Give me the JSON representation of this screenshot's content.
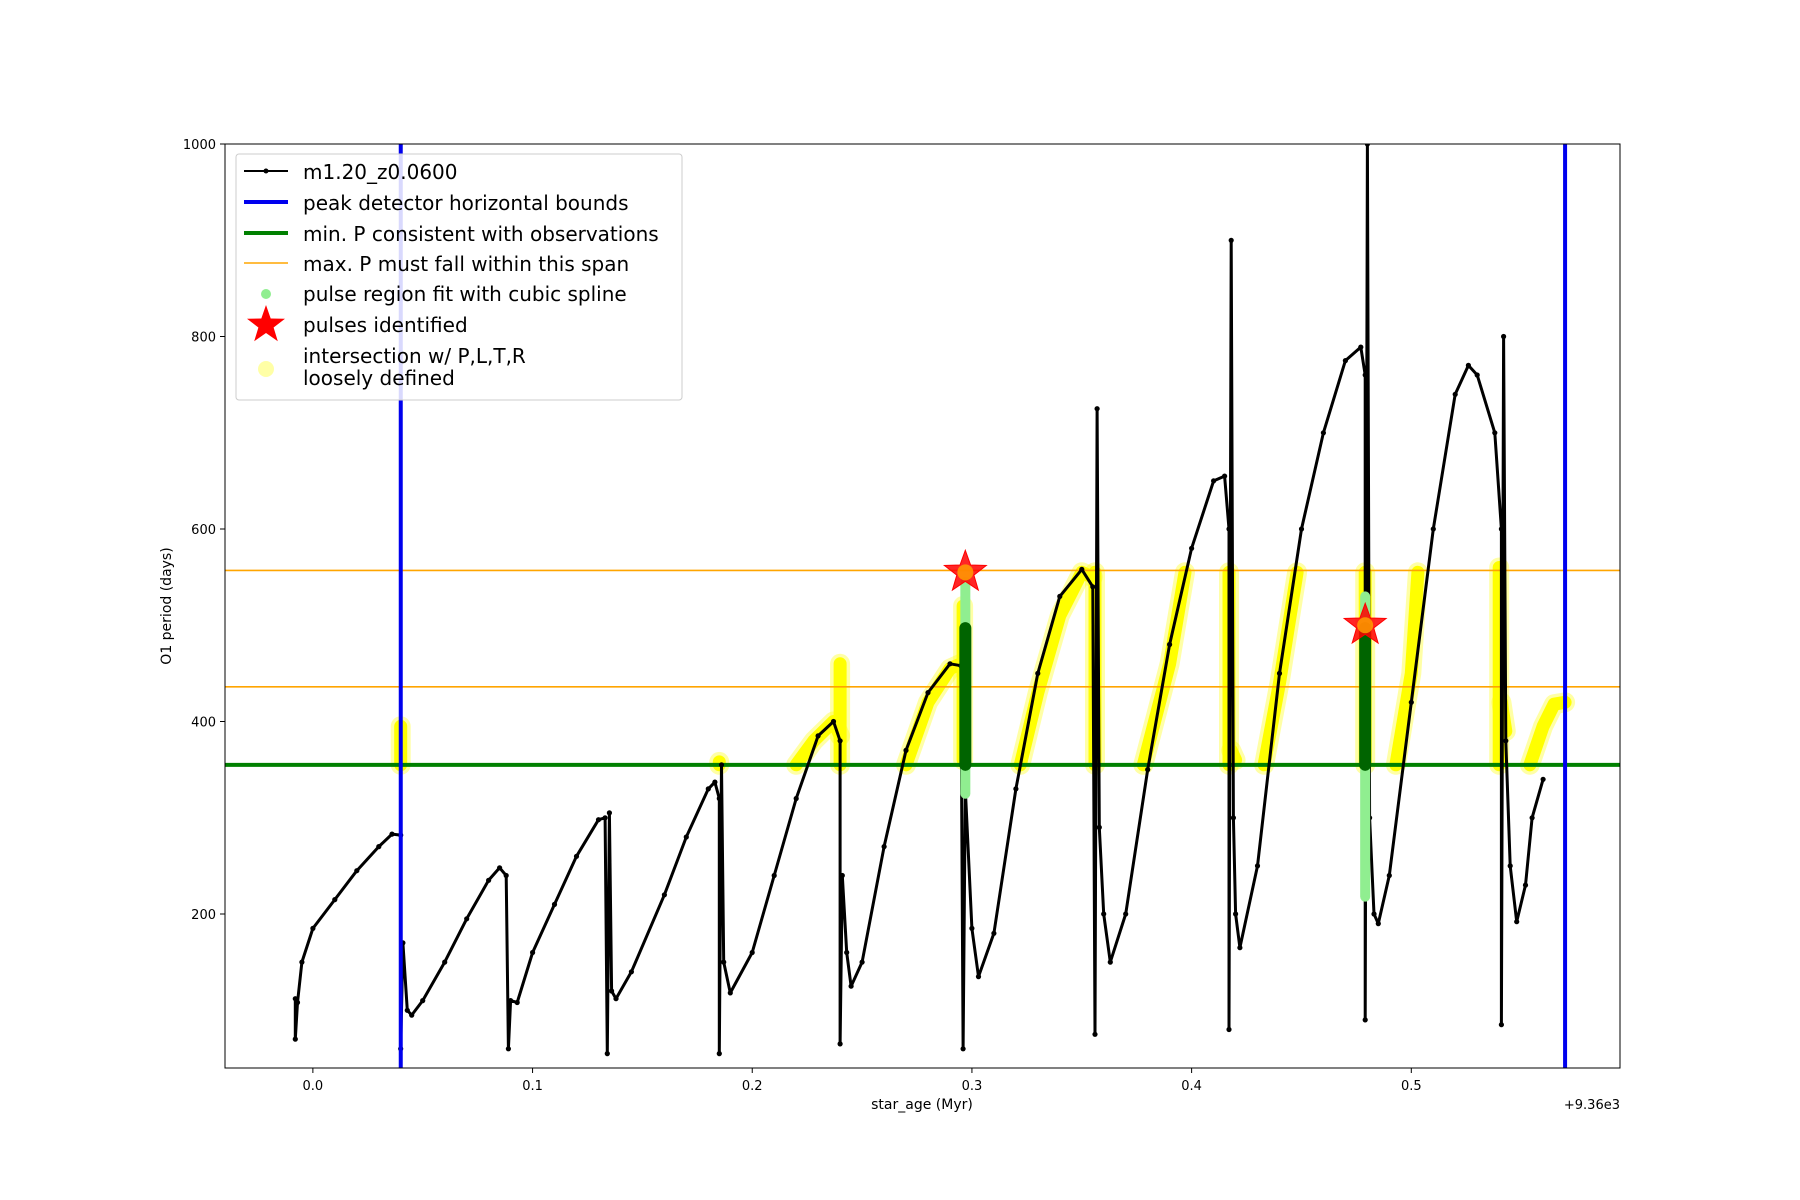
{
  "chart_data": {
    "type": "line",
    "xlabel": "star_age (Myr)",
    "ylabel": "O1 period (days)",
    "x_offset_label": "+9.36e3",
    "xlim": [
      -0.04,
      0.595
    ],
    "ylim": [
      40,
      1000
    ],
    "x_ticks": [
      0.0,
      0.1,
      0.2,
      0.3,
      0.4,
      0.5
    ],
    "x_tick_labels": [
      "0.0",
      "0.1",
      "0.2",
      "0.3",
      "0.4",
      "0.5"
    ],
    "y_ticks": [
      200,
      400,
      600,
      800,
      1000
    ],
    "y_tick_labels": [
      "200",
      "400",
      "600",
      "800",
      "1000"
    ],
    "grid": false,
    "legend_position": "upper-left",
    "colors": {
      "track": "#000000",
      "bounds": "#0000ee",
      "min_p": "#008000",
      "max_p": "#ffa500",
      "spline": "#90ee90",
      "spline_dark": "#006400",
      "pulse": "#ff0000",
      "loose": "#ffff00"
    },
    "legend": [
      {
        "label": "m1.20_z0.0600",
        "marker": "black-line-dot"
      },
      {
        "label": "peak detector horizontal bounds",
        "marker": "blue-line"
      },
      {
        "label": "min. P consistent with observations",
        "marker": "green-line"
      },
      {
        "label": "max. P must fall within this span",
        "marker": "orange-line"
      },
      {
        "label": "pulse region fit with cubic spline",
        "marker": "lightgreen-dot"
      },
      {
        "label": "pulses identified",
        "marker": "red-star"
      },
      {
        "label": "intersection w/ P,L,T,R",
        "label2": "loosely defined",
        "marker": "yellow-circle"
      }
    ],
    "series": [
      {
        "name": "m1.20_z0.0600",
        "segments": [
          [
            [
              -0.008,
              112
            ],
            [
              -0.008,
              70
            ],
            [
              -0.007,
              108
            ],
            [
              -0.005,
              150
            ],
            [
              0.0,
              185
            ],
            [
              0.01,
              215
            ],
            [
              0.02,
              245
            ],
            [
              0.03,
              270
            ],
            [
              0.036,
              283
            ],
            [
              0.04,
              282
            ],
            [
              0.04,
              60
            ],
            [
              0.041,
              170
            ],
            [
              0.043,
              100
            ],
            [
              0.045,
              95
            ],
            [
              0.05,
              110
            ],
            [
              0.06,
              150
            ],
            [
              0.07,
              195
            ],
            [
              0.08,
              235
            ],
            [
              0.085,
              248
            ],
            [
              0.088,
              240
            ],
            [
              0.089,
              60
            ],
            [
              0.09,
              110
            ],
            [
              0.093,
              108
            ],
            [
              0.1,
              160
            ],
            [
              0.11,
              210
            ],
            [
              0.12,
              260
            ],
            [
              0.13,
              298
            ],
            [
              0.133,
              300
            ],
            [
              0.134,
              55
            ],
            [
              0.135,
              305
            ],
            [
              0.136,
              120
            ],
            [
              0.138,
              112
            ],
            [
              0.145,
              140
            ],
            [
              0.16,
              220
            ],
            [
              0.17,
              280
            ],
            [
              0.18,
              330
            ],
            [
              0.183,
              337
            ],
            [
              0.185,
              320
            ],
            [
              0.185,
              55
            ],
            [
              0.186,
              355
            ],
            [
              0.187,
              150
            ],
            [
              0.19,
              118
            ],
            [
              0.2,
              160
            ],
            [
              0.21,
              240
            ],
            [
              0.22,
              320
            ],
            [
              0.23,
              385
            ],
            [
              0.237,
              400
            ],
            [
              0.24,
              380
            ],
            [
              0.24,
              65
            ],
            [
              0.241,
              240
            ],
            [
              0.243,
              160
            ],
            [
              0.245,
              125
            ],
            [
              0.25,
              150
            ],
            [
              0.26,
              270
            ],
            [
              0.27,
              370
            ],
            [
              0.28,
              430
            ],
            [
              0.29,
              460
            ],
            [
              0.295,
              458
            ],
            [
              0.296,
              60
            ],
            [
              0.297,
              330
            ],
            [
              0.3,
              185
            ],
            [
              0.303,
              135
            ],
            [
              0.31,
              180
            ],
            [
              0.32,
              330
            ],
            [
              0.33,
              450
            ],
            [
              0.34,
              530
            ],
            [
              0.35,
              558
            ],
            [
              0.355,
              540
            ],
            [
              0.356,
              75
            ],
            [
              0.357,
              725
            ],
            [
              0.358,
              290
            ],
            [
              0.36,
              200
            ],
            [
              0.363,
              150
            ],
            [
              0.37,
              200
            ],
            [
              0.38,
              350
            ],
            [
              0.39,
              480
            ],
            [
              0.4,
              580
            ],
            [
              0.41,
              650
            ],
            [
              0.415,
              655
            ],
            [
              0.417,
              600
            ],
            [
              0.417,
              80
            ],
            [
              0.418,
              900
            ],
            [
              0.419,
              300
            ],
            [
              0.42,
              200
            ],
            [
              0.422,
              165
            ],
            [
              0.43,
              250
            ],
            [
              0.44,
              450
            ],
            [
              0.45,
              600
            ],
            [
              0.46,
              700
            ],
            [
              0.47,
              775
            ],
            [
              0.477,
              789
            ],
            [
              0.479,
              760
            ],
            [
              0.479,
              90
            ],
            [
              0.48,
              1000
            ],
            [
              0.481,
              300
            ],
            [
              0.483,
              200
            ],
            [
              0.485,
              190
            ],
            [
              0.49,
              240
            ],
            [
              0.5,
              420
            ],
            [
              0.51,
              600
            ],
            [
              0.52,
              740
            ],
            [
              0.526,
              770
            ],
            [
              0.53,
              760
            ],
            [
              0.538,
              700
            ],
            [
              0.541,
              600
            ],
            [
              0.541,
              85
            ],
            [
              0.542,
              800
            ],
            [
              0.543,
              380
            ],
            [
              0.545,
              250
            ],
            [
              0.548,
              192
            ],
            [
              0.552,
              230
            ],
            [
              0.555,
              300
            ],
            [
              0.56,
              340
            ]
          ]
        ]
      }
    ],
    "bounds_x": [
      0.04,
      0.57
    ],
    "min_p": 355,
    "max_p_span": [
      436,
      557
    ],
    "pulses": [
      {
        "x": 0.297,
        "y": 555
      },
      {
        "x": 0.479,
        "y": 500
      }
    ],
    "spline_regions": [
      {
        "x": 0.297,
        "y_range": [
          325,
          545
        ],
        "dense_range": [
          355,
          497
        ]
      },
      {
        "x": 0.479,
        "y_range": [
          218,
          530
        ],
        "dense_range": [
          355,
          497
        ]
      }
    ],
    "loose_segments": [
      [
        [
          0.04,
          355
        ],
        [
          0.04,
          395
        ]
      ],
      [
        [
          0.185,
          355
        ],
        [
          0.185,
          358
        ]
      ],
      [
        [
          0.22,
          355
        ],
        [
          0.228,
          380
        ],
        [
          0.237,
          400
        ],
        [
          0.24,
          385
        ]
      ],
      [
        [
          0.24,
          355
        ],
        [
          0.24,
          460
        ]
      ],
      [
        [
          0.27,
          355
        ],
        [
          0.28,
          420
        ],
        [
          0.29,
          455
        ],
        [
          0.295,
          460
        ]
      ],
      [
        [
          0.296,
          360
        ],
        [
          0.296,
          520
        ]
      ],
      [
        [
          0.322,
          355
        ],
        [
          0.33,
          430
        ],
        [
          0.34,
          510
        ],
        [
          0.35,
          555
        ],
        [
          0.355,
          550
        ]
      ],
      [
        [
          0.356,
          355
        ],
        [
          0.356,
          555
        ]
      ],
      [
        [
          0.378,
          355
        ],
        [
          0.39,
          460
        ],
        [
          0.397,
          555
        ]
      ],
      [
        [
          0.417,
          355
        ],
        [
          0.417,
          555
        ]
      ],
      [
        [
          0.418,
          370
        ],
        [
          0.42,
          360
        ]
      ],
      [
        [
          0.433,
          355
        ],
        [
          0.44,
          440
        ],
        [
          0.448,
          555
        ]
      ],
      [
        [
          0.479,
          355
        ],
        [
          0.479,
          555
        ]
      ],
      [
        [
          0.493,
          355
        ],
        [
          0.5,
          450
        ],
        [
          0.503,
          555
        ]
      ],
      [
        [
          0.54,
          355
        ],
        [
          0.54,
          560
        ]
      ],
      [
        [
          0.541,
          420
        ],
        [
          0.543,
          390
        ]
      ],
      [
        [
          0.554,
          355
        ],
        [
          0.56,
          395
        ],
        [
          0.565,
          418
        ],
        [
          0.57,
          420
        ]
      ]
    ]
  }
}
